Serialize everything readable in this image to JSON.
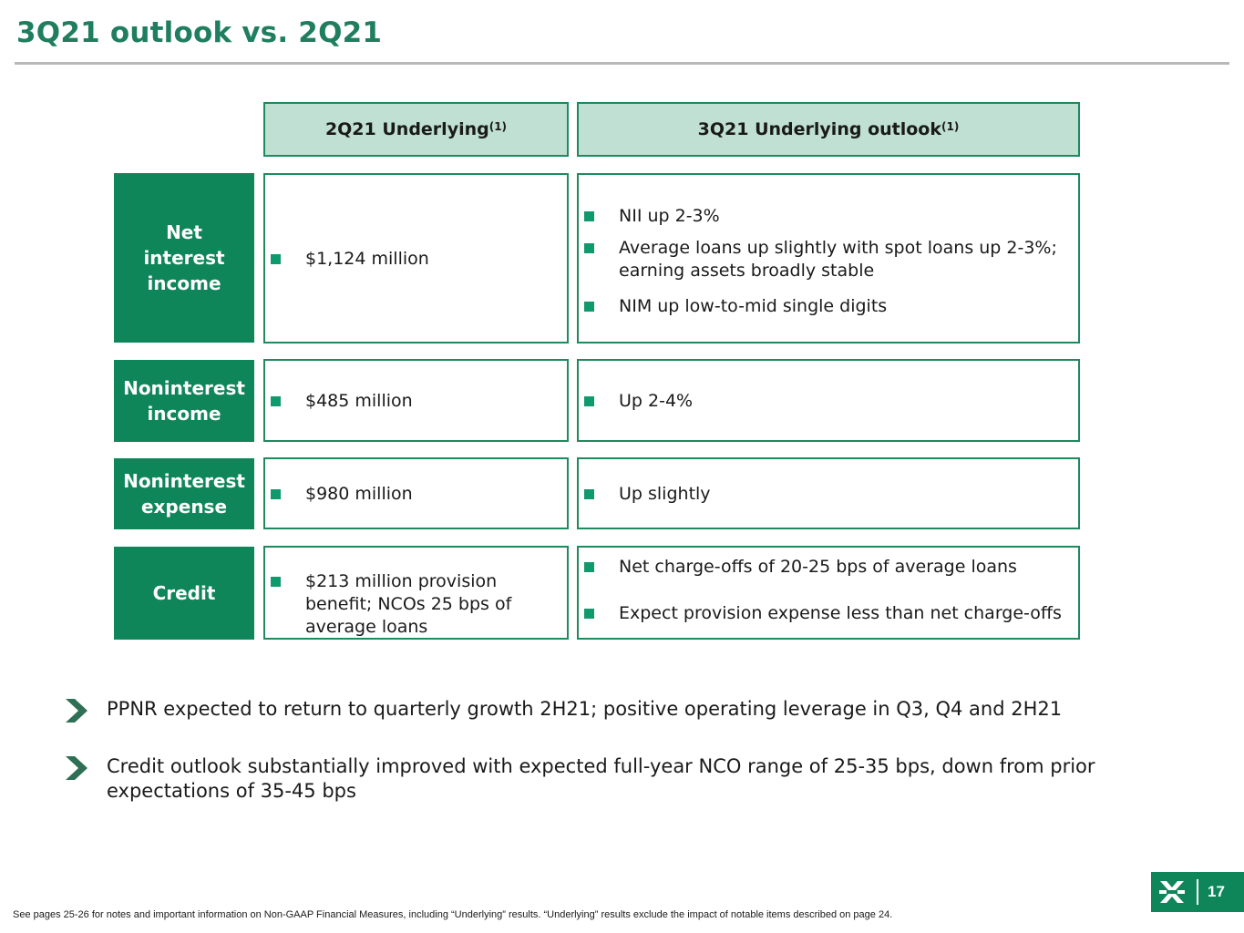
{
  "title": "3Q21 outlook vs. 2Q21",
  "columns": {
    "col1": {
      "label": "2Q21 Underlying",
      "sup": "(1)"
    },
    "col2": {
      "label": "3Q21 Underlying outlook",
      "sup": "(1)"
    }
  },
  "rows": {
    "nii": {
      "label": "Net interest income",
      "q2": [
        "$1,124 million"
      ],
      "q3": [
        "NII up 2-3%",
        "Average loans up slightly with spot loans up 2-3%; earning assets broadly stable",
        "NIM up low-to-mid single digits"
      ]
    },
    "nonint_income": {
      "label": "Noninterest income",
      "q2": [
        "$485 million"
      ],
      "q3": [
        "Up 2-4%"
      ]
    },
    "nonint_expense": {
      "label": "Noninterest expense",
      "q2": [
        "$980 million"
      ],
      "q3": [
        "Up slightly"
      ]
    },
    "credit": {
      "label": "Credit",
      "q2": [
        "$213 million provision benefit; NCOs 25 bps of average loans"
      ],
      "q3": [
        "Net charge-offs of 20-25 bps of average loans",
        "Expect provision expense less than net charge-offs"
      ]
    }
  },
  "takeaways": [
    "PPNR expected to return to quarterly growth 2H21; positive operating leverage in Q3, Q4 and 2H21",
    "Credit outlook substantially improved with expected full-year NCO range of 25-35 bps, down from prior expectations of 35-45 bps"
  ],
  "footnote": "See pages 25-26 for notes and important information on Non-GAAP Financial Measures, including “Underlying” results. “Underlying” results exclude the impact of notable items described on page 24.",
  "page_number": "17",
  "colors": {
    "brand_green": "#0f855a",
    "header_fill": "#bfe0d3",
    "title_green": "#1f7e5f",
    "bullet_green": "#0f9a6e"
  },
  "icons": {
    "takeaway": "chevron-right-icon",
    "logo": "citizens-logo-icon"
  }
}
